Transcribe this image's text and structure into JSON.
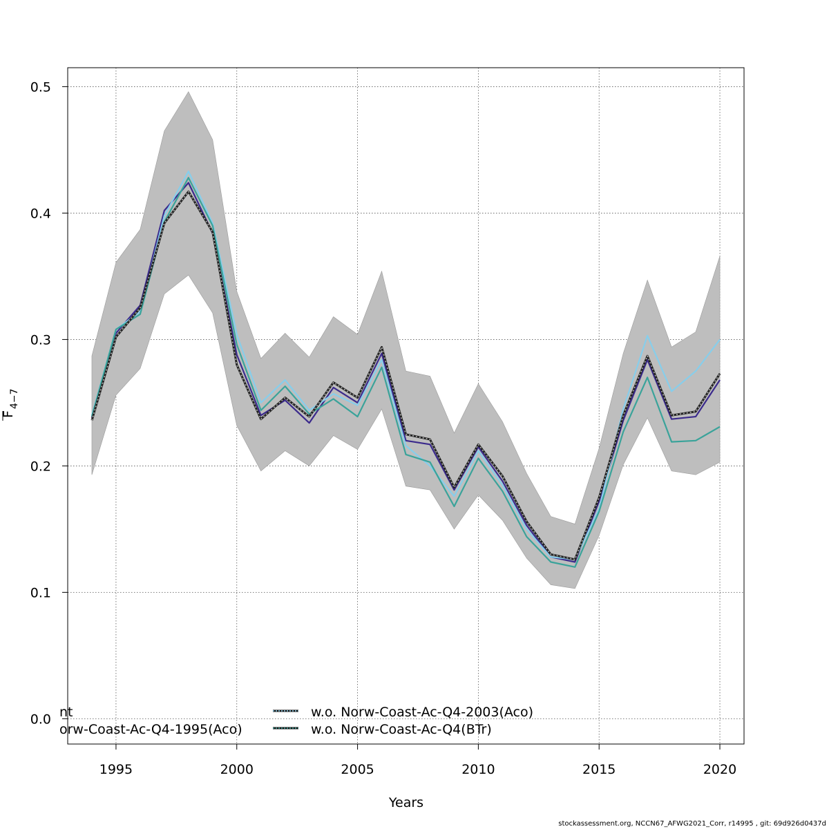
{
  "chart_data": {
    "type": "line",
    "xlabel": "Years",
    "ylabel": "F",
    "ylabel_subscript": "4−7",
    "xlim": [
      1993,
      2021
    ],
    "ylim": [
      -0.02,
      0.515
    ],
    "xticks": [
      1995,
      2000,
      2005,
      2010,
      2015,
      2020
    ],
    "yticks": [
      0.0,
      0.1,
      0.2,
      0.3,
      0.4,
      0.5
    ],
    "ytick_labels": [
      "0.0",
      "0.1",
      "0.2",
      "0.3",
      "0.4",
      "0.5"
    ],
    "grid": true,
    "x": [
      1994,
      1995,
      1996,
      1997,
      1998,
      1999,
      2000,
      2001,
      2002,
      2003,
      2004,
      2005,
      2006,
      2007,
      2008,
      2009,
      2010,
      2011,
      2012,
      2013,
      2014,
      2015,
      2016,
      2017,
      2018,
      2019,
      2020
    ],
    "band": {
      "lower": [
        0.193,
        0.256,
        0.277,
        0.336,
        0.351,
        0.321,
        0.232,
        0.196,
        0.212,
        0.2,
        0.224,
        0.213,
        0.245,
        0.184,
        0.181,
        0.15,
        0.177,
        0.157,
        0.127,
        0.106,
        0.103,
        0.145,
        0.201,
        0.238,
        0.196,
        0.193,
        0.203
      ],
      "upper": [
        0.287,
        0.361,
        0.387,
        0.465,
        0.496,
        0.458,
        0.338,
        0.285,
        0.305,
        0.286,
        0.318,
        0.304,
        0.354,
        0.275,
        0.271,
        0.226,
        0.265,
        0.235,
        0.194,
        0.16,
        0.154,
        0.214,
        0.289,
        0.347,
        0.294,
        0.306,
        0.366
      ],
      "color": "#bebebe"
    },
    "series": [
      {
        "values": [
          0.236,
          0.302,
          0.325,
          0.392,
          0.417,
          0.385,
          0.28,
          0.237,
          0.254,
          0.239,
          0.266,
          0.254,
          0.294,
          0.225,
          0.221,
          0.183,
          0.217,
          0.192,
          0.156,
          0.13,
          0.126,
          0.175,
          0.24,
          0.287,
          0.24,
          0.243,
          0.273
        ],
        "color": "#222222",
        "style": "solid",
        "width": 3
      },
      {
        "values": [
          0.236,
          0.302,
          0.325,
          0.392,
          0.417,
          0.385,
          0.28,
          0.237,
          0.254,
          0.239,
          0.266,
          0.254,
          0.294,
          0.225,
          0.221,
          0.183,
          0.217,
          0.192,
          0.156,
          0.13,
          0.126,
          0.175,
          0.24,
          0.287,
          0.24,
          0.243,
          0.273
        ],
        "color": "#bbbbbb",
        "style": "dotted",
        "width": 1.5
      },
      {
        "values": [
          0.238,
          0.305,
          0.327,
          0.402,
          0.424,
          0.384,
          0.288,
          0.24,
          0.252,
          0.234,
          0.262,
          0.25,
          0.289,
          0.22,
          0.217,
          0.181,
          0.215,
          0.188,
          0.153,
          0.128,
          0.124,
          0.172,
          0.236,
          0.284,
          0.237,
          0.239,
          0.268
        ],
        "color": "#3b2a8c",
        "style": "solid",
        "width": 2.2
      },
      {
        "name": "w.o. Norw-Coast-Ac-Q4-2003(Aco)",
        "values": [
          0.24,
          0.308,
          0.322,
          0.398,
          0.433,
          0.392,
          0.304,
          0.25,
          0.268,
          0.244,
          0.257,
          0.248,
          0.284,
          0.216,
          0.2,
          0.176,
          0.212,
          0.185,
          0.15,
          0.128,
          0.126,
          0.166,
          0.245,
          0.303,
          0.259,
          0.275,
          0.3
        ],
        "color": "#87ceeb",
        "style": "solid",
        "width": 2.2
      },
      {
        "name": "w.o. Norw-Coast-Ac-Q4(BTr)",
        "values": [
          0.239,
          0.308,
          0.32,
          0.393,
          0.428,
          0.39,
          0.296,
          0.244,
          0.263,
          0.241,
          0.253,
          0.239,
          0.278,
          0.209,
          0.203,
          0.168,
          0.206,
          0.18,
          0.144,
          0.124,
          0.12,
          0.164,
          0.227,
          0.27,
          0.219,
          0.22,
          0.231
        ],
        "color": "#3aa39a",
        "style": "solid",
        "width": 2.2
      }
    ],
    "legend": {
      "placement": "bottom-left",
      "entries": [
        {
          "label": "nt",
          "swatch": false
        },
        {
          "label": "orw-Coast-Ac-Q4-1995(Aco)",
          "swatch": false
        },
        {
          "label": "w.o. Norw-Coast-Ac-Q4-2003(Aco)",
          "swatch": true,
          "outer": "#111111",
          "inner": "#87ceeb"
        },
        {
          "label": "w.o. Norw-Coast-Ac-Q4(BTr)",
          "swatch": true,
          "outer": "#111111",
          "inner": "#3aa39a"
        }
      ]
    }
  },
  "footer": "stockassessment.org, NCCN67_AFWG2021_Corr, r14995 , git: 69d926d0437d"
}
